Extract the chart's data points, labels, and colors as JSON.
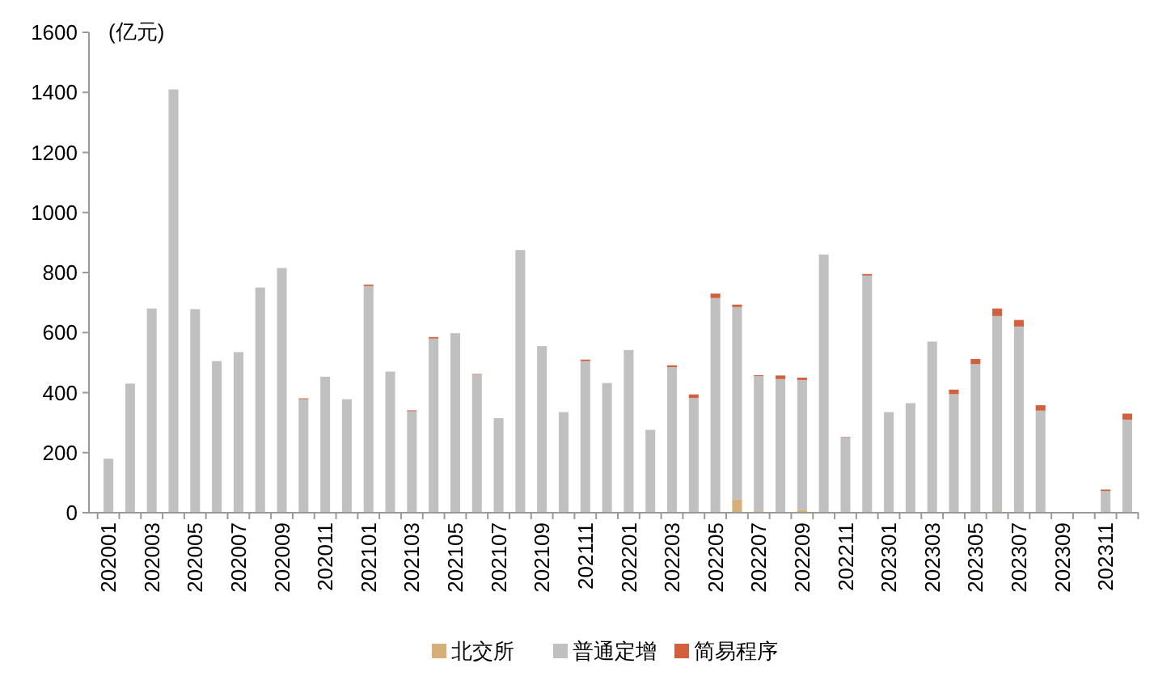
{
  "chart_data": {
    "type": "bar",
    "stacked": true,
    "ylabel": "(亿元)",
    "categories": [
      "202001",
      null,
      "202003",
      null,
      "202005",
      null,
      "202007",
      null,
      "202009",
      null,
      "202011",
      null,
      "202101",
      null,
      "202103",
      null,
      "202105",
      null,
      "202107",
      null,
      "202109",
      null,
      "202111",
      null,
      "202201",
      null,
      "202203",
      null,
      "202205",
      null,
      "202207",
      null,
      "202209",
      null,
      "202211",
      null,
      "202301",
      null,
      "202303",
      null,
      "202305",
      null,
      "202307",
      null,
      "202309",
      null,
      "202311",
      null
    ],
    "series": [
      {
        "name": "北交所",
        "color": "#d6ae78",
        "values": [
          0,
          0,
          0,
          0,
          0,
          0,
          0,
          0,
          0,
          0,
          0,
          0,
          0,
          0,
          0,
          0,
          0,
          0,
          0,
          0,
          0,
          0,
          0,
          0,
          0,
          0,
          0,
          0,
          0,
          45,
          5,
          0,
          10,
          0,
          0,
          0,
          0,
          0,
          0,
          0,
          0,
          5,
          0,
          0,
          0,
          0,
          0,
          0
        ]
      },
      {
        "name": "普通定增",
        "color": "#c0c0c0",
        "values": [
          180,
          430,
          680,
          1410,
          678,
          505,
          535,
          750,
          815,
          378,
          453,
          378,
          755,
          470,
          338,
          580,
          598,
          460,
          315,
          875,
          555,
          335,
          505,
          432,
          542,
          276,
          485,
          382,
          715,
          640,
          450,
          445,
          432,
          860,
          250,
          790,
          335,
          365,
          570,
          395,
          495,
          650,
          620,
          340,
          null,
          0,
          72,
          310
        ]
      },
      {
        "name": "简易程序",
        "color": "#d0603e",
        "values": [
          0,
          0,
          0,
          0,
          0,
          0,
          0,
          0,
          0,
          3,
          0,
          0,
          5,
          0,
          3,
          5,
          0,
          2,
          0,
          0,
          0,
          0,
          5,
          0,
          0,
          0,
          6,
          12,
          15,
          8,
          3,
          12,
          8,
          0,
          2,
          5,
          0,
          0,
          0,
          15,
          17,
          25,
          22,
          18,
          0,
          0,
          5,
          20
        ]
      }
    ],
    "ylim": [
      0,
      1600
    ],
    "yticks": [
      0,
      200,
      400,
      600,
      800,
      1000,
      1200,
      1400,
      1600
    ],
    "grid": false,
    "legend": "bottom"
  }
}
